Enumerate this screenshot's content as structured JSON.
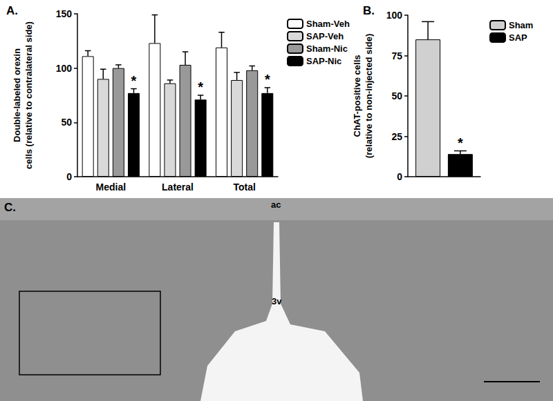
{
  "chart_data": [
    {
      "type": "bar",
      "title": "A.",
      "ylabel": "Double-labeled orexin\ncells (relative to contralateral side)",
      "categories": [
        "Medial",
        "Lateral",
        "Total"
      ],
      "series": [
        {
          "name": "Sham-Veh",
          "color": "#ffffff",
          "values": [
            111,
            123,
            119
          ],
          "errors": [
            5,
            26,
            14
          ]
        },
        {
          "name": "SAP-Veh",
          "color": "#d9d9d9",
          "values": [
            90,
            86,
            89
          ],
          "errors": [
            9,
            3,
            7
          ]
        },
        {
          "name": "Sham-Nic",
          "color": "#999999",
          "values": [
            100,
            103,
            98
          ],
          "errors": [
            3,
            12,
            4
          ]
        },
        {
          "name": "SAP-Nic",
          "color": "#000000",
          "values": [
            77,
            71,
            77
          ],
          "errors": [
            4,
            4,
            5
          ]
        }
      ],
      "ylim": [
        0,
        150
      ],
      "yticks": [
        0,
        50,
        100,
        150
      ],
      "grid": false,
      "legend": "top right",
      "annotations": [
        {
          "text": "*",
          "series": "SAP-Nic",
          "category": "Medial"
        },
        {
          "text": "*",
          "series": "SAP-Nic",
          "category": "Lateral"
        },
        {
          "text": "*",
          "series": "SAP-Nic",
          "category": "Total"
        }
      ]
    },
    {
      "type": "bar",
      "title": "B.",
      "ylabel": "ChAT-positive cells\n(relative to non-injected side)",
      "categories": [
        null
      ],
      "series": [
        {
          "name": "Sham",
          "color": "#d0d0d0",
          "values": [
            85
          ],
          "errors": [
            11
          ]
        },
        {
          "name": "SAP",
          "color": "#000000",
          "values": [
            14
          ],
          "errors": [
            2
          ]
        }
      ],
      "ylim": [
        0,
        100
      ],
      "yticks": [
        0,
        25,
        50,
        75,
        100
      ],
      "grid": false,
      "legend": "top right",
      "tick_labels": "y",
      "annotations": [
        {
          "text": "*",
          "series": "SAP"
        }
      ]
    }
  ],
  "panel_c": {
    "title": "C.",
    "labels": [
      "ac",
      "3v"
    ]
  }
}
